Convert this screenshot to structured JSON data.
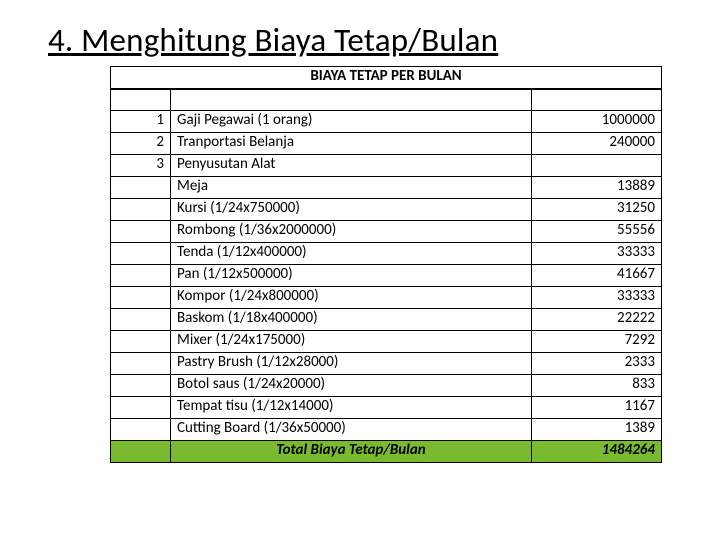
{
  "colors": {
    "text": "#000000",
    "background": "#ffffff",
    "border": "#000000",
    "total_row_bg": "#7aba2f"
  },
  "typography": {
    "heading_fontsize_pt": 25,
    "cell_fontsize_pt": 11,
    "font_family": "Calibri"
  },
  "heading": "4. Menghitung Biaya Tetap/Bulan",
  "table": {
    "title": "BIAYA TETAP PER BULAN",
    "columns": [
      "no",
      "description",
      "value"
    ],
    "column_align": [
      "right",
      "left",
      "right"
    ],
    "rows": [
      {
        "no": "",
        "desc": "",
        "val": ""
      },
      {
        "no": "1",
        "desc": "Gaji Pegawai (1 orang)",
        "val": "1000000"
      },
      {
        "no": "2",
        "desc": "Tranportasi Belanja",
        "val": "240000"
      },
      {
        "no": "3",
        "desc": "Penyusutan Alat",
        "val": ""
      },
      {
        "no": "",
        "desc": "Meja",
        "val": "13889"
      },
      {
        "no": "",
        "desc": "Kursi (1/24x750000)",
        "val": "31250"
      },
      {
        "no": "",
        "desc": "Rombong (1/36x2000000)",
        "val": "55556"
      },
      {
        "no": "",
        "desc": "Tenda (1/12x400000)",
        "val": "33333"
      },
      {
        "no": "",
        "desc": "Pan (1/12x500000)",
        "val": "41667"
      },
      {
        "no": "",
        "desc": "Kompor (1/24x800000)",
        "val": "33333"
      },
      {
        "no": "",
        "desc": "Baskom (1/18x400000)",
        "val": "22222"
      },
      {
        "no": "",
        "desc": "Mixer (1/24x175000)",
        "val": "7292"
      },
      {
        "no": "",
        "desc": "Pastry Brush (1/12x28000)",
        "val": "2333"
      },
      {
        "no": "",
        "desc": "Botol saus (1/24x20000)",
        "val": "833"
      },
      {
        "no": "",
        "desc": "Tempat tisu (1/12x14000)",
        "val": "1167"
      },
      {
        "no": "",
        "desc": "Cutting Board (1/36x50000)",
        "val": "1389"
      }
    ],
    "total": {
      "label": "Total Biaya Tetap/Bulan",
      "value": "1484264"
    }
  }
}
